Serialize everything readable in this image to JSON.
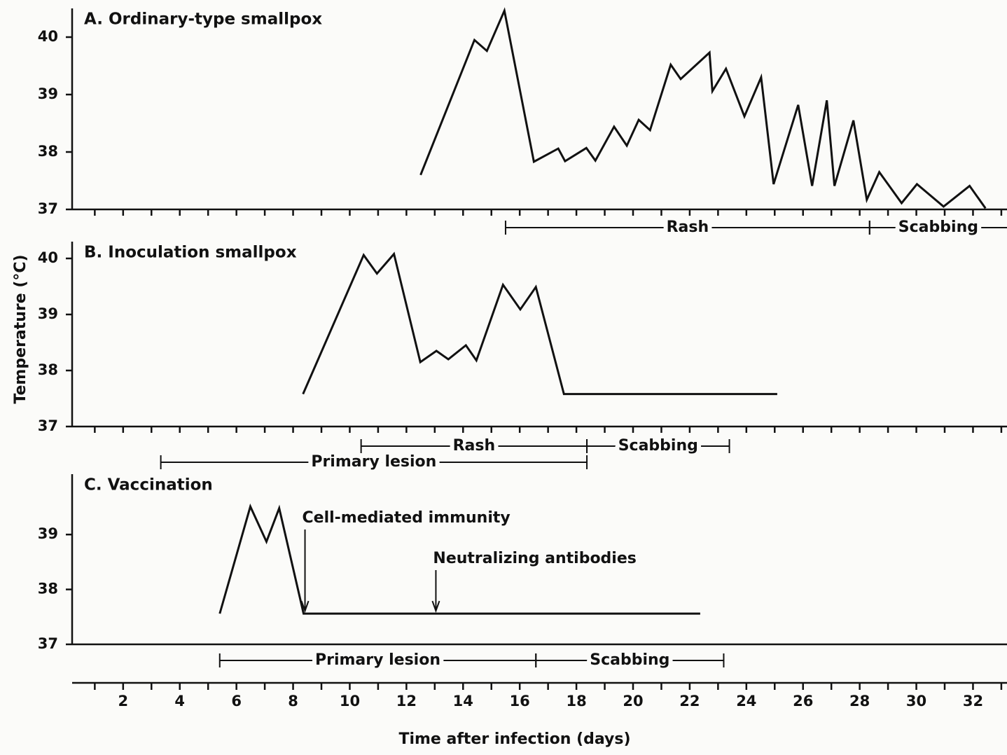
{
  "chart_data": [
    {
      "type": "line",
      "title": "A. Ordinary-type smallpox",
      "x": [
        12.5,
        14.4,
        14.84,
        15.46,
        16.5,
        17.36,
        17.6,
        18.35,
        18.67,
        19.33,
        19.78,
        20.2,
        20.6,
        21.33,
        21.68,
        22.7,
        22.8,
        23.28,
        23.93,
        24.52,
        24.96,
        25.83,
        26.32,
        26.84,
        27.11,
        27.78,
        28.25,
        28.69,
        29.48,
        30.02,
        30.96,
        31.88,
        32.44
      ],
      "values": [
        37.6,
        39.95,
        39.76,
        40.46,
        37.83,
        38.06,
        37.84,
        38.07,
        37.85,
        38.44,
        38.11,
        38.56,
        38.38,
        39.52,
        39.27,
        39.73,
        39.06,
        39.45,
        38.62,
        39.3,
        37.44,
        38.82,
        37.41,
        38.9,
        37.41,
        38.55,
        37.17,
        37.65,
        37.11,
        37.44,
        37.05,
        37.41,
        37.02
      ],
      "color": "#111111",
      "ylim": [
        37,
        40.5
      ],
      "yticks": [
        37,
        38,
        39,
        40
      ],
      "phase_rows": [
        [
          {
            "label": "Rash",
            "start": 15.5,
            "end": 28.35
          },
          {
            "label": "Scabbing",
            "start": 28.35,
            "end": 33.2
          }
        ]
      ]
    },
    {
      "type": "line",
      "title": "B. Inoculation smallpox",
      "ylabel": "Temperature (°C)",
      "x": [
        8.35,
        10.49,
        10.96,
        11.56,
        12.49,
        13.06,
        13.48,
        14.1,
        14.47,
        15.41,
        16.02,
        16.57,
        17.56,
        25.09
      ],
      "values": [
        37.58,
        40.06,
        39.73,
        40.08,
        38.15,
        38.35,
        38.2,
        38.45,
        38.18,
        39.53,
        39.09,
        39.49,
        37.58,
        37.58
      ],
      "color": "#111111",
      "ylim": [
        37,
        40.3
      ],
      "yticks": [
        37,
        38,
        39,
        40
      ],
      "phase_rows": [
        [
          {
            "label": "Rash",
            "start": 10.4,
            "end": 18.37
          },
          {
            "label": "Scabbing",
            "start": 18.37,
            "end": 23.4
          }
        ],
        [
          {
            "label": "Primary lesion",
            "start": 3.33,
            "end": 18.37
          }
        ]
      ]
    },
    {
      "type": "line",
      "title": "C. Vaccination",
      "xlabel": "Time after infection (days)",
      "x": [
        5.41,
        6.49,
        7.06,
        7.51,
        8.37,
        22.37
      ],
      "values": [
        37.56,
        39.51,
        38.87,
        39.48,
        37.56,
        37.56
      ],
      "color": "#111111",
      "ylim": [
        37,
        40.1
      ],
      "yticks": [
        37,
        38,
        39
      ],
      "xlim": [
        0.2,
        33.2
      ],
      "xticks": [
        2,
        4,
        6,
        8,
        10,
        12,
        14,
        16,
        18,
        20,
        22,
        24,
        26,
        28,
        30,
        32
      ],
      "minor_xticks": [
        1,
        3,
        5,
        7,
        9,
        11,
        13,
        15,
        17,
        19,
        21,
        23,
        25,
        27,
        29,
        31,
        33
      ],
      "phase_rows": [
        [
          {
            "label": "Primary lesion",
            "start": 5.41,
            "end": 16.57
          },
          {
            "label": "Scabbing",
            "start": 16.57,
            "end": 23.2
          }
        ]
      ],
      "annotations": [
        {
          "text": "Cell-mediated immunity",
          "x": 8.42
        },
        {
          "text": "Neutralizing antibodies",
          "x": 13.04
        }
      ]
    }
  ]
}
